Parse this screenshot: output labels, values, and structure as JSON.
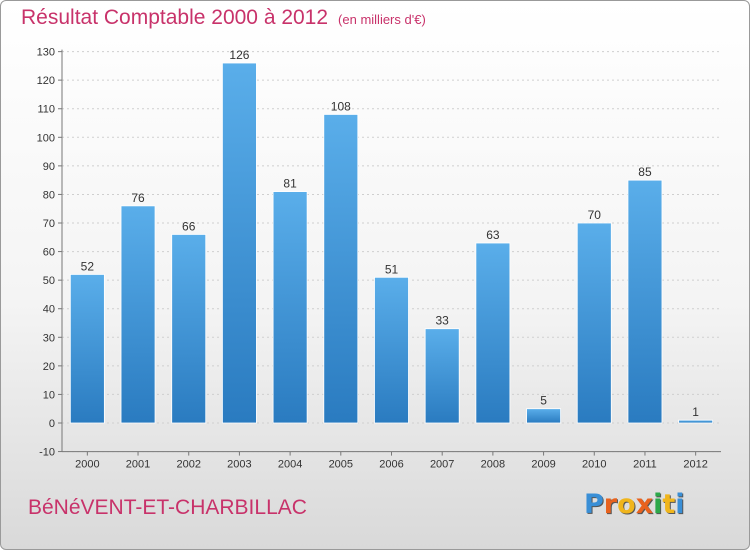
{
  "title": "Résultat Comptable 2000 à 2012",
  "subtitle": "(en milliers d'€)",
  "commune": "BéNéVENT-ET-CHARBILLAC",
  "logo": {
    "text": "Proxiti",
    "letter_colors": [
      "#3a8fd6",
      "#e8621e",
      "#f0b51c",
      "#e8621e",
      "#2da84a",
      "#f0b51c",
      "#3a8fd6"
    ]
  },
  "colors": {
    "bar": "#4a9fe0",
    "bar_dark": "#2c7fc4",
    "title": "#c8326a"
  },
  "chart_data": {
    "type": "bar",
    "title": "Résultat Comptable 2000 à 2012",
    "subtitle": "(en milliers d'€)",
    "categories": [
      "2000",
      "2001",
      "2002",
      "2003",
      "2004",
      "2005",
      "2006",
      "2007",
      "2008",
      "2009",
      "2010",
      "2011",
      "2012"
    ],
    "values": [
      52,
      76,
      66,
      126,
      81,
      108,
      51,
      33,
      63,
      5,
      70,
      85,
      1
    ],
    "data_labels": [
      "52",
      "76",
      "66",
      "126",
      "81",
      "108",
      "51",
      "33",
      "63",
      "5",
      "70",
      "85",
      "1"
    ],
    "yticks": [
      "-10",
      "0",
      "10",
      "20",
      "30",
      "40",
      "50",
      "60",
      "70",
      "80",
      "90",
      "100",
      "110",
      "120",
      "130"
    ],
    "ytick_values": [
      -10,
      0,
      10,
      20,
      30,
      40,
      50,
      60,
      70,
      80,
      90,
      100,
      110,
      120,
      130
    ],
    "ylim": [
      -10,
      130
    ],
    "grid": true
  }
}
